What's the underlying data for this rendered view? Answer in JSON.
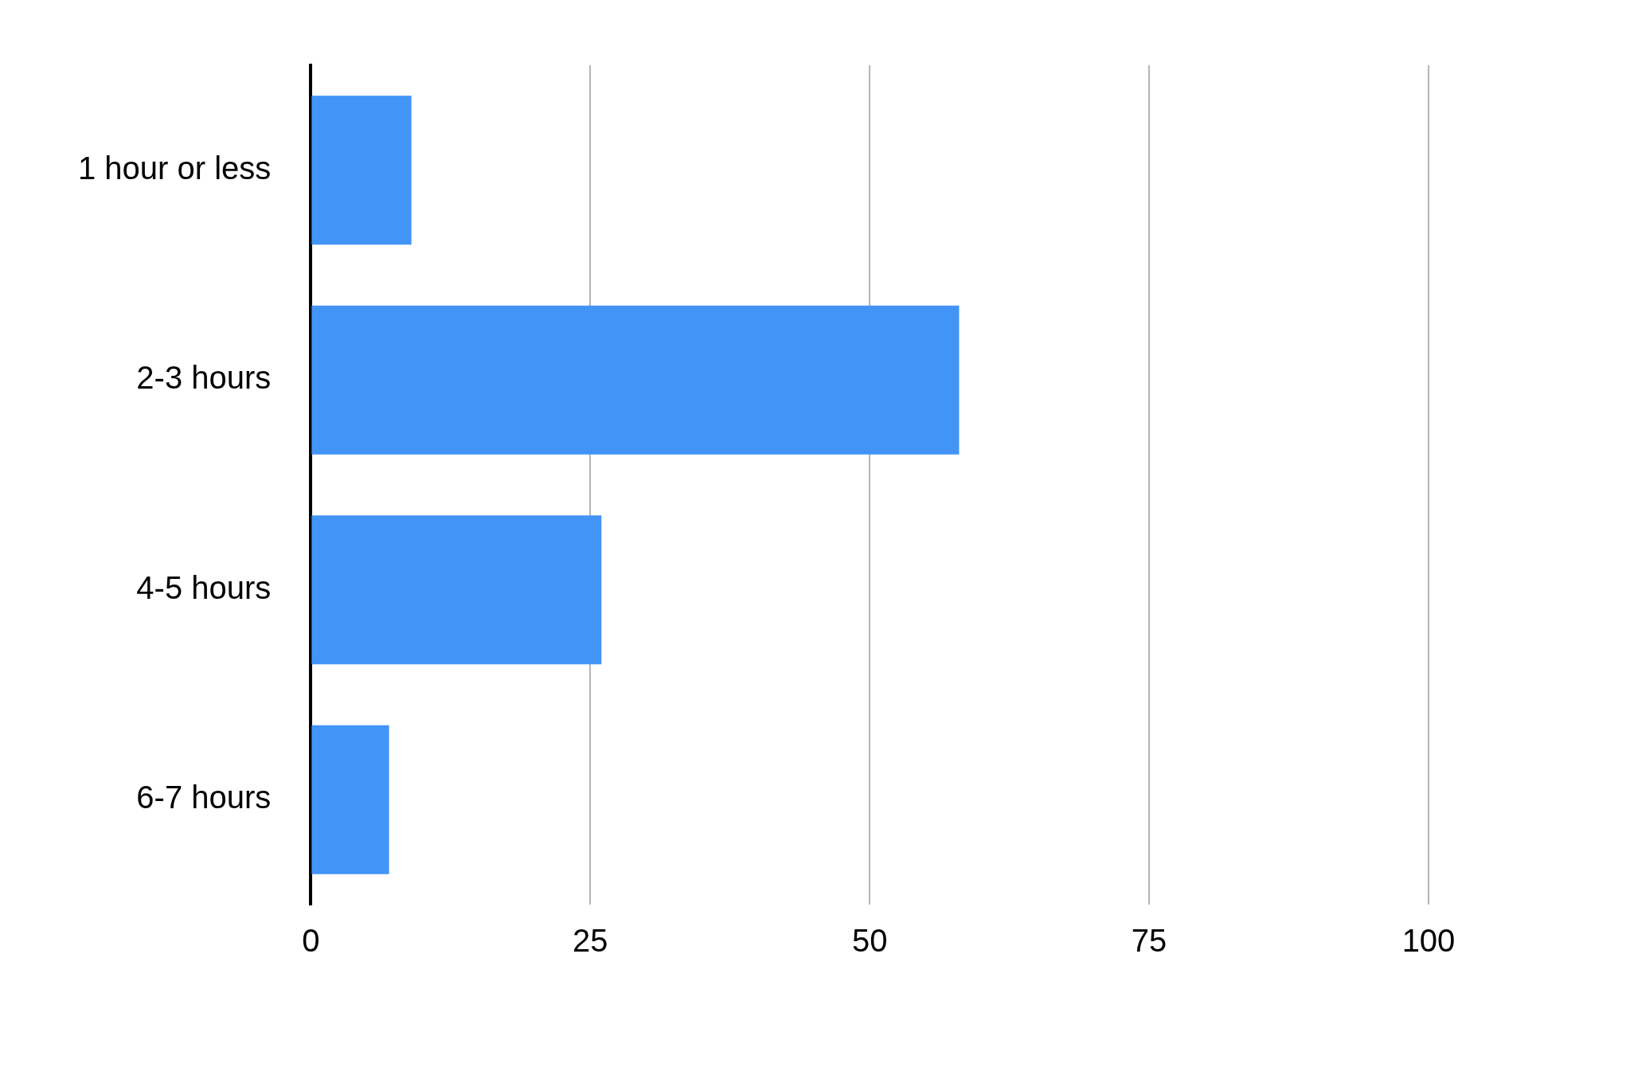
{
  "chart_data": {
    "type": "bar",
    "orientation": "horizontal",
    "categories": [
      "1 hour or less",
      "2-3 hours",
      "4-5 hours",
      "6-7 hours"
    ],
    "values": [
      9,
      58,
      26,
      7
    ],
    "color": "#4294f7",
    "xlim": [
      0,
      100
    ],
    "xticks": [
      0,
      25,
      50,
      75,
      100
    ],
    "grid": "x"
  }
}
